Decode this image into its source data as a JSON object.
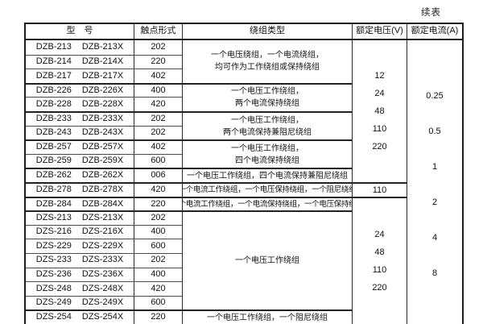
{
  "page": {
    "continued_label": "续表"
  },
  "table": {
    "headers": [
      "型　号",
      "触点形式",
      "绕组类型",
      "额定电压(V)",
      "额定电流(A)"
    ],
    "group_start_rows": [
      4,
      6,
      8,
      10,
      11,
      12,
      13,
      20
    ],
    "rows": [
      {
        "model_a": "DZB-213",
        "model_b": "DZB-213X",
        "contact": "202"
      },
      {
        "model_a": "DZB-214",
        "model_b": "DZB-214X",
        "contact": "220"
      },
      {
        "model_a": "DZB-217",
        "model_b": "DZB-217X",
        "contact": "402"
      },
      {
        "model_a": "DZB-226",
        "model_b": "DZB-226X",
        "contact": "400"
      },
      {
        "model_a": "DZB-228",
        "model_b": "DZB-228X",
        "contact": "420"
      },
      {
        "model_a": "DZB-233",
        "model_b": "DZB-233X",
        "contact": "202"
      },
      {
        "model_a": "DZB-243",
        "model_b": "DZB-243X",
        "contact": "202"
      },
      {
        "model_a": "DZB-257",
        "model_b": "DZB-257X",
        "contact": "402"
      },
      {
        "model_a": "DZB-259",
        "model_b": "DZB-259X",
        "contact": "600"
      },
      {
        "model_a": "DZB-262",
        "model_b": "DZB-262X",
        "contact": "006"
      },
      {
        "model_a": "DZB-278",
        "model_b": "DZB-278X",
        "contact": "420"
      },
      {
        "model_a": "DZB-284",
        "model_b": "DZB-284X",
        "contact": "220"
      },
      {
        "model_a": "DZS-213",
        "model_b": "DZS-213X",
        "contact": "202"
      },
      {
        "model_a": "DZS-216",
        "model_b": "DZS-216X",
        "contact": "400"
      },
      {
        "model_a": "DZS-229",
        "model_b": "DZS-229X",
        "contact": "600"
      },
      {
        "model_a": "DZS-233",
        "model_b": "DZS-233X",
        "contact": "202"
      },
      {
        "model_a": "DZS-236",
        "model_b": "DZS-236X",
        "contact": "400"
      },
      {
        "model_a": "DZS-248",
        "model_b": "DZS-248X",
        "contact": "420"
      },
      {
        "model_a": "DZS-249",
        "model_b": "DZS-249X",
        "contact": "600"
      },
      {
        "model_a": "DZS-254",
        "model_b": "DZS-254X",
        "contact": "220"
      }
    ],
    "winding_groups": [
      {
        "start": 1,
        "span": 3,
        "small": false,
        "lines": [
          "一个电压绕组，一个电流绕组，",
          "均可作为工作绕组或保持绕组"
        ]
      },
      {
        "start": 4,
        "span": 2,
        "small": false,
        "lines": [
          "一个电压工作绕组，",
          "两个电流保持绕组"
        ]
      },
      {
        "start": 6,
        "span": 2,
        "small": false,
        "lines": [
          "一个电压工作绕组，",
          "两个电流保持兼阻尼绕组"
        ]
      },
      {
        "start": 8,
        "span": 2,
        "small": false,
        "lines": [
          "一个电压工作绕组，",
          "四个电流保持绕组"
        ]
      },
      {
        "start": 10,
        "span": 1,
        "small": false,
        "lines": [
          "一个电压工作绕组，四个电流保持兼阻尼绕组"
        ]
      },
      {
        "start": 11,
        "span": 1,
        "small": true,
        "lines": [
          "一个电流工作绕组，一个电压保持绕组，一个阻尼绕组"
        ]
      },
      {
        "start": 12,
        "span": 1,
        "small": true,
        "lines": [
          "一个电流工作绕组，一个电流保持绕组，一个电压保持绕组"
        ]
      },
      {
        "start": 13,
        "span": 7,
        "small": false,
        "lines": [
          "一个电压工作绕组"
        ]
      },
      {
        "start": 20,
        "span": 1,
        "small": false,
        "lines": [
          "一个电压工作绕组，一个阻尼绕组"
        ]
      }
    ],
    "voltage_groups": [
      {
        "start": 1,
        "span": 10,
        "values": [
          "12",
          "24",
          "48",
          "110",
          "220"
        ]
      },
      {
        "start": 11,
        "span": 1,
        "values": [
          "110"
        ]
      },
      {
        "start": 12,
        "span": 9,
        "values": [
          "24",
          "48",
          "110",
          "220"
        ]
      }
    ],
    "current_column": {
      "start": 1,
      "span": 20,
      "values": [
        {
          "value": "0.25",
          "rows": [
            4,
            5
          ]
        },
        {
          "value": "0.5",
          "rows": [
            7
          ]
        },
        {
          "value": "1",
          "rows": [
            9,
            10
          ]
        },
        {
          "value": "2",
          "rows": [
            12
          ]
        },
        {
          "value": "4",
          "rows": [
            14,
            15
          ]
        },
        {
          "value": "8",
          "rows": [
            17
          ]
        }
      ]
    }
  }
}
